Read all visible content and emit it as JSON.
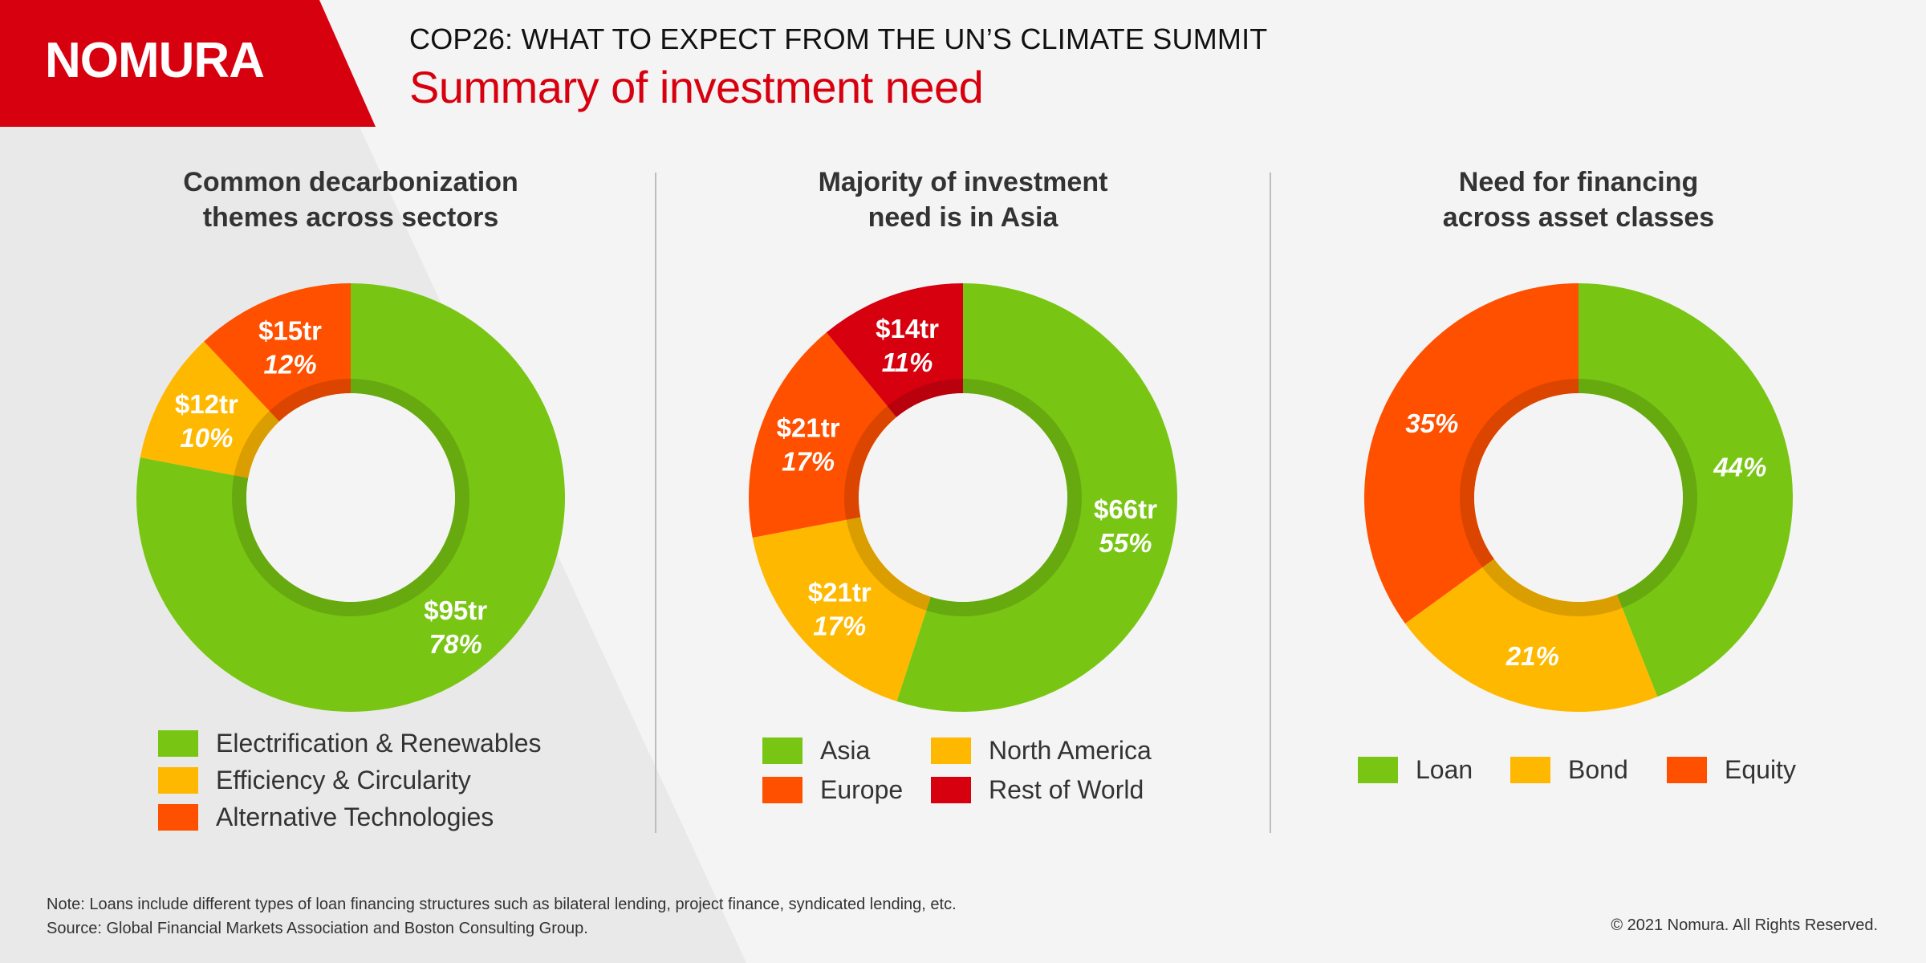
{
  "brand": {
    "logo_text": "NOMURA",
    "red": "#d7000f"
  },
  "header": {
    "title": "COP26: WHAT TO EXPECT FROM THE UN’S CLIMATE SUMMIT",
    "subtitle": "Summary of investment need"
  },
  "chart_data": [
    {
      "type": "pie",
      "donut": true,
      "title": [
        "Common decarbonization",
        "themes across sectors"
      ],
      "slices": [
        {
          "name": "Electrification & Renewables",
          "amount": "$95tr",
          "percent": 78,
          "percent_label": "78%",
          "color": "#78c613"
        },
        {
          "name": "Efficiency & Circularity",
          "amount": "$12tr",
          "percent": 10,
          "percent_label": "10%",
          "color": "#ffb800"
        },
        {
          "name": "Alternative Technologies",
          "amount": "$15tr",
          "percent": 12,
          "percent_label": "12%",
          "color": "#ff5000"
        }
      ],
      "legend": [
        "Electrification & Renewables",
        "Efficiency & Circularity",
        "Alternative Technologies"
      ],
      "legend_placement": "bottom"
    },
    {
      "type": "pie",
      "donut": true,
      "title": [
        "Majority of investment",
        "need is in Asia"
      ],
      "slices": [
        {
          "name": "Asia",
          "amount": "$66tr",
          "percent": 55,
          "percent_label": "55%",
          "color": "#78c613"
        },
        {
          "name": "North America",
          "amount": "$21tr",
          "percent": 17,
          "percent_label": "17%",
          "color": "#ffb800"
        },
        {
          "name": "Europe",
          "amount": "$21tr",
          "percent": 17,
          "percent_label": "17%",
          "color": "#ff5000"
        },
        {
          "name": "Rest of World",
          "amount": "$14tr",
          "percent": 11,
          "percent_label": "11%",
          "color": "#d7000f"
        }
      ],
      "legend": [
        "Asia",
        "North America",
        "Europe",
        "Rest of World"
      ],
      "legend_placement": "bottom"
    },
    {
      "type": "pie",
      "donut": true,
      "title": [
        "Need for financing",
        "across asset classes"
      ],
      "slices": [
        {
          "name": "Loan",
          "amount": "",
          "percent": 44,
          "percent_label": "44%",
          "color": "#78c613"
        },
        {
          "name": "Bond",
          "amount": "",
          "percent": 21,
          "percent_label": "21%",
          "color": "#ffb800"
        },
        {
          "name": "Equity",
          "amount": "",
          "percent": 35,
          "percent_label": "35%",
          "color": "#ff5000"
        }
      ],
      "legend": [
        "Loan",
        "Bond",
        "Equity"
      ],
      "legend_placement": "bottom"
    }
  ],
  "footer": {
    "note": "Note: Loans include different types of loan financing structures such as bilateral lending, project finance, syndicated lending, etc.",
    "source": "Source: Global Financial Markets Association and Boston Consulting Group.",
    "copyright": "© 2021 Nomura. All Rights Reserved."
  }
}
